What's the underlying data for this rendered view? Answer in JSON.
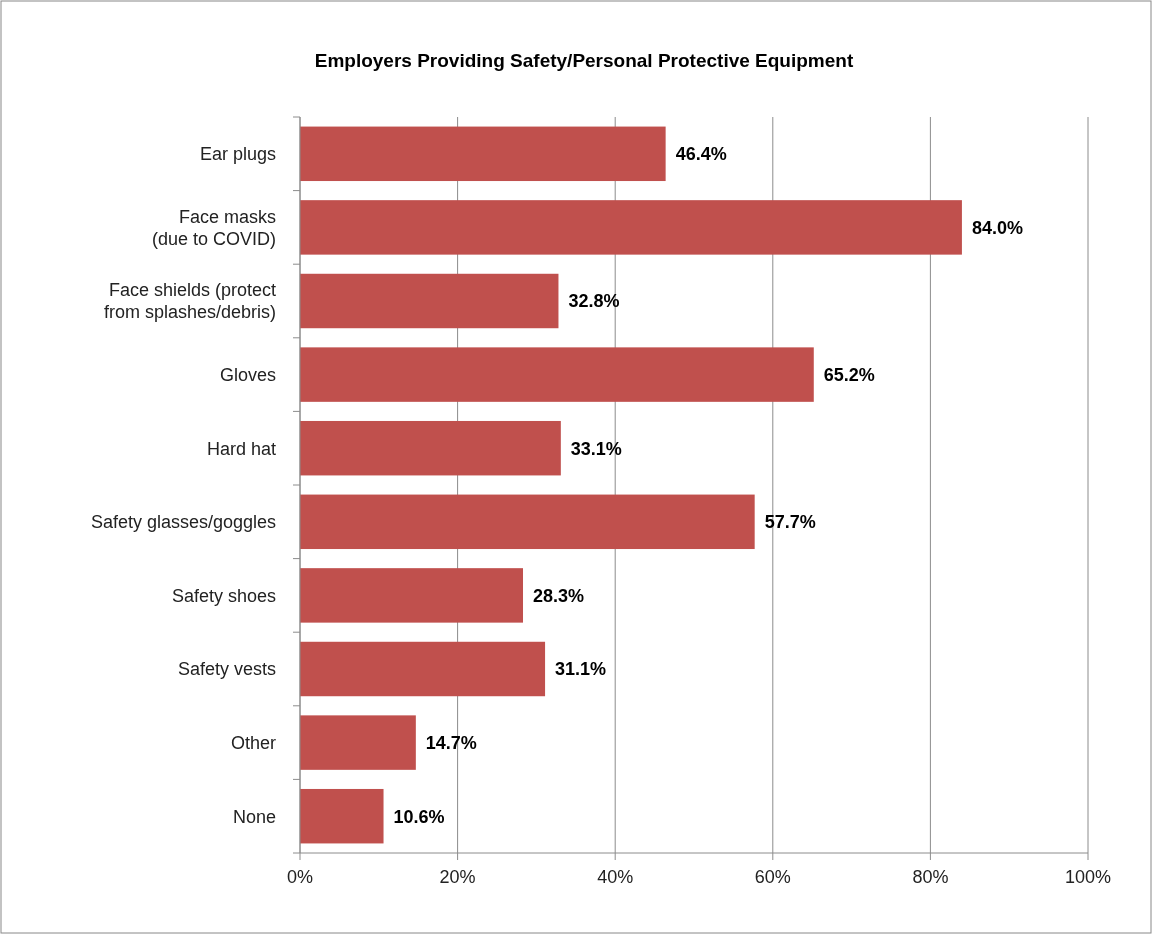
{
  "chart_data": {
    "type": "bar",
    "orientation": "horizontal",
    "title": "Employers Providing Safety/Personal Protective Equipment",
    "categories": [
      "Ear plugs",
      "Face masks\n(due to COVID)",
      "Face shields (protect\nfrom splashes/debris)",
      "Gloves",
      "Hard hat",
      "Safety glasses/goggles",
      "Safety shoes",
      "Safety vests",
      "Other",
      "None"
    ],
    "values": [
      46.4,
      84.0,
      32.8,
      65.2,
      33.1,
      57.7,
      28.3,
      31.1,
      14.7,
      10.6
    ],
    "value_labels": [
      "46.4%",
      "84.0%",
      "32.8%",
      "65.2%",
      "33.1%",
      "57.7%",
      "28.3%",
      "31.1%",
      "14.7%",
      "10.6%"
    ],
    "color": "#c0504d",
    "xlim": [
      0,
      100
    ],
    "xticks": [
      {
        "value": 0,
        "label": "0%"
      },
      {
        "value": 20,
        "label": "20%"
      },
      {
        "value": 40,
        "label": "40%"
      },
      {
        "value": 60,
        "label": "60%"
      },
      {
        "value": 80,
        "label": "80%"
      },
      {
        "value": 100,
        "label": "100%"
      }
    ],
    "grid": "x"
  }
}
